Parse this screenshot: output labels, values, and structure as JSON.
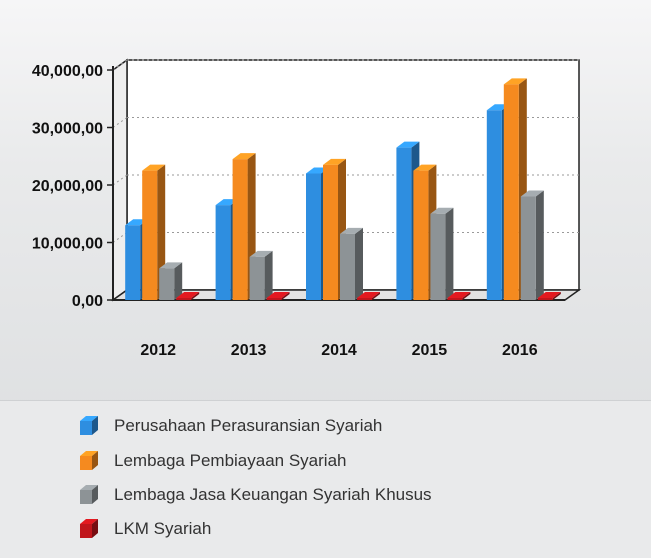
{
  "chart_data": {
    "type": "bar",
    "categories": [
      "2012",
      "2013",
      "2014",
      "2015",
      "2016"
    ],
    "series": [
      {
        "name": "Perusahaan Perasuransian Syariah",
        "values": [
          13000,
          16500,
          22000,
          26500,
          33000
        ],
        "color": "#2e8ee0"
      },
      {
        "name": "Lembaga Pembiayaan Syariah",
        "values": [
          22500,
          24500,
          23500,
          22500,
          37500
        ],
        "color": "#f58a1f"
      },
      {
        "name": "Lembaga Jasa Keuangan Syariah Khusus",
        "values": [
          5500,
          7500,
          11500,
          15000,
          18000
        ],
        "color": "#8d9396"
      },
      {
        "name": "LKM Syariah",
        "values": [
          150,
          150,
          150,
          150,
          150
        ],
        "color": "#c0151b"
      }
    ],
    "yticks": [
      "0,00",
      "10,000,00",
      "20,000,00",
      "30,000,00",
      "40,000,00"
    ],
    "ylim": [
      0,
      40000
    ],
    "grid": true,
    "legend_position": "bottom",
    "title": "",
    "xlabel": "",
    "ylabel": ""
  }
}
